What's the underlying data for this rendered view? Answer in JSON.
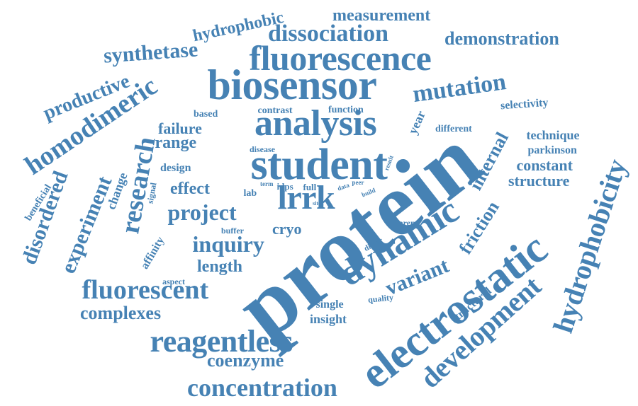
{
  "cloud": {
    "color": "#4682b4",
    "words": [
      "protein",
      "electrostatic",
      "student",
      "biosensor",
      "fluorescence",
      "analysis",
      "dynamic",
      "lrrk",
      "hydrophobicity",
      "development",
      "reagentless",
      "concentration",
      "homodimeric",
      "research",
      "fluorescent",
      "project",
      "inquiry",
      "mutation",
      "dissociation",
      "synthetase",
      "productive",
      "demonstration",
      "disordered",
      "experiment",
      "measurement",
      "hydrophobic",
      "coenzyme",
      "complexes",
      "variant",
      "internal",
      "friction",
      "constant",
      "structure",
      "length",
      "effect",
      "range",
      "failure",
      "cryo",
      "insight",
      "single",
      "technique",
      "parkinson",
      "selectivity",
      "structural",
      "year",
      "different",
      "function",
      "contrast",
      "based",
      "design",
      "disease",
      "change",
      "affinity",
      "signal",
      "beneficial",
      "lab",
      "idps",
      "full",
      "buffer",
      "aspect",
      "dimer",
      "quality",
      "parent",
      "term",
      "data",
      "peer",
      "result",
      "build",
      "site"
    ]
  }
}
